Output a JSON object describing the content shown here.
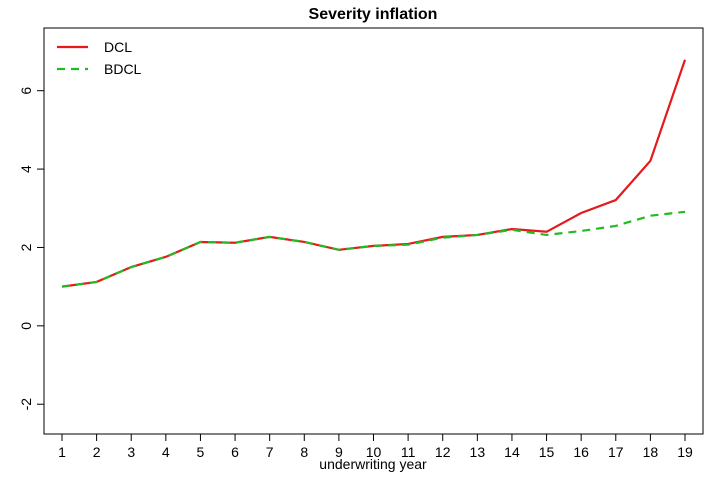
{
  "chart_data": {
    "type": "line",
    "title": "Severity inflation",
    "x_label": "underwriting year",
    "x": [
      1,
      2,
      3,
      4,
      5,
      6,
      7,
      8,
      9,
      10,
      11,
      12,
      13,
      14,
      15,
      16,
      17,
      18,
      19
    ],
    "series": [
      {
        "name": "DCL",
        "color": "#e41a1c",
        "dash": "solid",
        "values": [
          1.0,
          1.12,
          1.5,
          1.76,
          2.14,
          2.12,
          2.27,
          2.14,
          1.94,
          2.04,
          2.09,
          2.27,
          2.32,
          2.47,
          2.4,
          2.88,
          3.21,
          4.21,
          6.79
        ]
      },
      {
        "name": "BDCL",
        "color": "#22bb22",
        "dash": "dashed",
        "values": [
          1.0,
          1.12,
          1.5,
          1.76,
          2.14,
          2.12,
          2.27,
          2.14,
          1.94,
          2.04,
          2.07,
          2.25,
          2.32,
          2.45,
          2.32,
          2.42,
          2.55,
          2.81,
          2.91
        ]
      }
    ],
    "xlim": [
      0.48,
      19.52
    ],
    "xticks": [
      1,
      2,
      3,
      4,
      5,
      6,
      7,
      8,
      9,
      10,
      11,
      12,
      13,
      14,
      15,
      16,
      17,
      18,
      19
    ],
    "ylim": [
      -2.76,
      7.6
    ],
    "yticks": [
      -2,
      0,
      2,
      4,
      6
    ],
    "legend": "top-left"
  }
}
